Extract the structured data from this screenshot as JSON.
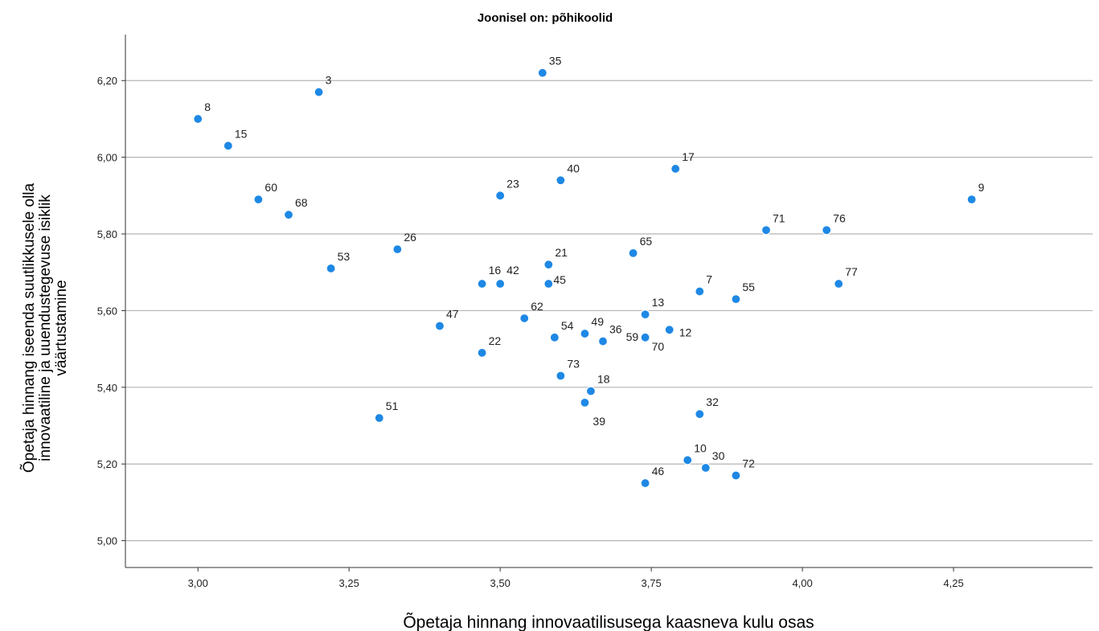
{
  "chart_data": {
    "type": "scatter",
    "title": "Joonisel on: põhikoolid",
    "xlabel": "Õpetaja hinnang innovaatilisusega kaasneva kulu osas",
    "ylabel_lines": [
      "Õpetaja hinnang iseenda suutlikkusele olla",
      "innovaatiline ja uuendustegevuse isiklik",
      "väärtustamine"
    ],
    "xlim": [
      2.88,
      4.48
    ],
    "ylim": [
      4.93,
      6.32
    ],
    "x_ticks": [
      3.0,
      3.25,
      3.5,
      3.75,
      4.0,
      4.25
    ],
    "x_tick_labels": [
      "3,00",
      "3,25",
      "3,50",
      "3,75",
      "4,00",
      "4,25"
    ],
    "y_ticks": [
      5.0,
      5.2,
      5.4,
      5.6,
      5.8,
      6.0,
      6.2
    ],
    "y_tick_labels": [
      "5,00",
      "5,20",
      "5,40",
      "5,60",
      "5,80",
      "6,00",
      "6,20"
    ],
    "grid": "horizontal",
    "marker_color": "#1e88e5",
    "points": [
      {
        "label": "8",
        "x": 3.0,
        "y": 6.1
      },
      {
        "label": "15",
        "x": 3.05,
        "y": 6.03
      },
      {
        "label": "3",
        "x": 3.2,
        "y": 6.17
      },
      {
        "label": "60",
        "x": 3.1,
        "y": 5.89
      },
      {
        "label": "68",
        "x": 3.15,
        "y": 5.85
      },
      {
        "label": "53",
        "x": 3.22,
        "y": 5.71
      },
      {
        "label": "26",
        "x": 3.33,
        "y": 5.76
      },
      {
        "label": "51",
        "x": 3.3,
        "y": 5.32
      },
      {
        "label": "47",
        "x": 3.4,
        "y": 5.56
      },
      {
        "label": "22",
        "x": 3.47,
        "y": 5.49
      },
      {
        "label": "16",
        "x": 3.47,
        "y": 5.67
      },
      {
        "label": "42",
        "x": 3.5,
        "y": 5.67
      },
      {
        "label": "23",
        "x": 3.5,
        "y": 5.9
      },
      {
        "label": "35",
        "x": 3.57,
        "y": 6.22
      },
      {
        "label": "40",
        "x": 3.6,
        "y": 5.94
      },
      {
        "label": "21",
        "x": 3.58,
        "y": 5.72
      },
      {
        "label": "45",
        "x": 3.58,
        "y": 5.67
      },
      {
        "label": "62",
        "x": 3.54,
        "y": 5.58
      },
      {
        "label": "54",
        "x": 3.59,
        "y": 5.53
      },
      {
        "label": "73",
        "x": 3.6,
        "y": 5.43
      },
      {
        "label": "49",
        "x": 3.64,
        "y": 5.54
      },
      {
        "label": "36",
        "x": 3.67,
        "y": 5.52
      },
      {
        "label": "18",
        "x": 3.65,
        "y": 5.39
      },
      {
        "label": "39",
        "x": 3.64,
        "y": 5.36
      },
      {
        "label": "65",
        "x": 3.72,
        "y": 5.75
      },
      {
        "label": "13",
        "x": 3.74,
        "y": 5.59
      },
      {
        "label": "59",
        "x": 3.74,
        "y": 5.53
      },
      {
        "label": "70",
        "x": 3.74,
        "y": 5.53
      },
      {
        "label": "12",
        "x": 3.78,
        "y": 5.55
      },
      {
        "label": "17",
        "x": 3.79,
        "y": 5.97
      },
      {
        "label": "7",
        "x": 3.83,
        "y": 5.65
      },
      {
        "label": "55",
        "x": 3.89,
        "y": 5.63
      },
      {
        "label": "32",
        "x": 3.83,
        "y": 5.33
      },
      {
        "label": "10",
        "x": 3.81,
        "y": 5.21
      },
      {
        "label": "30",
        "x": 3.84,
        "y": 5.19
      },
      {
        "label": "72",
        "x": 3.89,
        "y": 5.17
      },
      {
        "label": "46",
        "x": 3.74,
        "y": 5.15
      },
      {
        "label": "71",
        "x": 3.94,
        "y": 5.81
      },
      {
        "label": "76",
        "x": 4.04,
        "y": 5.81
      },
      {
        "label": "77",
        "x": 4.06,
        "y": 5.67
      },
      {
        "label": "9",
        "x": 4.28,
        "y": 5.89
      }
    ]
  }
}
